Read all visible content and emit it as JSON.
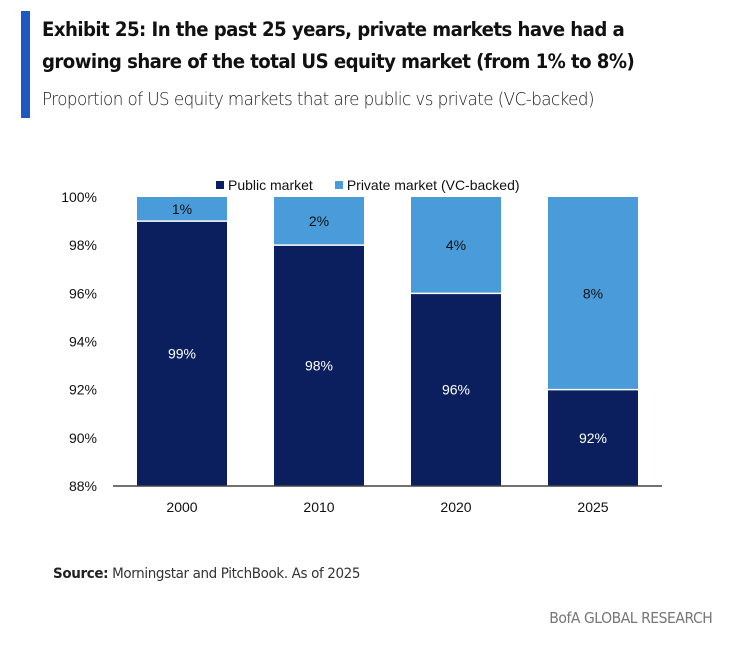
{
  "header": {
    "title": "Exhibit 25: In the past 25 years, private markets have had a growing share of the total US equity market (from 1% to 8%)",
    "subtitle": "Proportion of US equity markets that are public vs private (VC-backed)"
  },
  "colors": {
    "accent": "#1f57c3",
    "public": "#0b1f5e",
    "private": "#4a9bd9"
  },
  "chart_data": {
    "type": "bar",
    "stacked": true,
    "title": "Proportion of US equity markets that are public vs private (VC-backed)",
    "xlabel": "",
    "ylabel": "",
    "categories": [
      "2000",
      "2010",
      "2020",
      "2025"
    ],
    "series": [
      {
        "name": "Public market",
        "values": [
          99,
          98,
          96,
          92
        ],
        "labels": [
          "99%",
          "98%",
          "96%",
          "92%"
        ],
        "color": "#0b1f5e"
      },
      {
        "name": "Private market (VC-backed)",
        "values": [
          1,
          2,
          4,
          8
        ],
        "labels": [
          "1%",
          "2%",
          "4%",
          "8%"
        ],
        "color": "#4a9bd9"
      }
    ],
    "ylim": [
      88,
      100
    ],
    "yticks": [
      88,
      90,
      92,
      94,
      96,
      98,
      100
    ],
    "ytick_labels": [
      "88%",
      "90%",
      "92%",
      "94%",
      "96%",
      "98%",
      "100%"
    ],
    "grid": false,
    "legend_position": "top-center"
  },
  "footer": {
    "source_label": "Source:",
    "source_text": " Morningstar and PitchBook. As of 2025",
    "brand": "BofA GLOBAL RESEARCH"
  }
}
